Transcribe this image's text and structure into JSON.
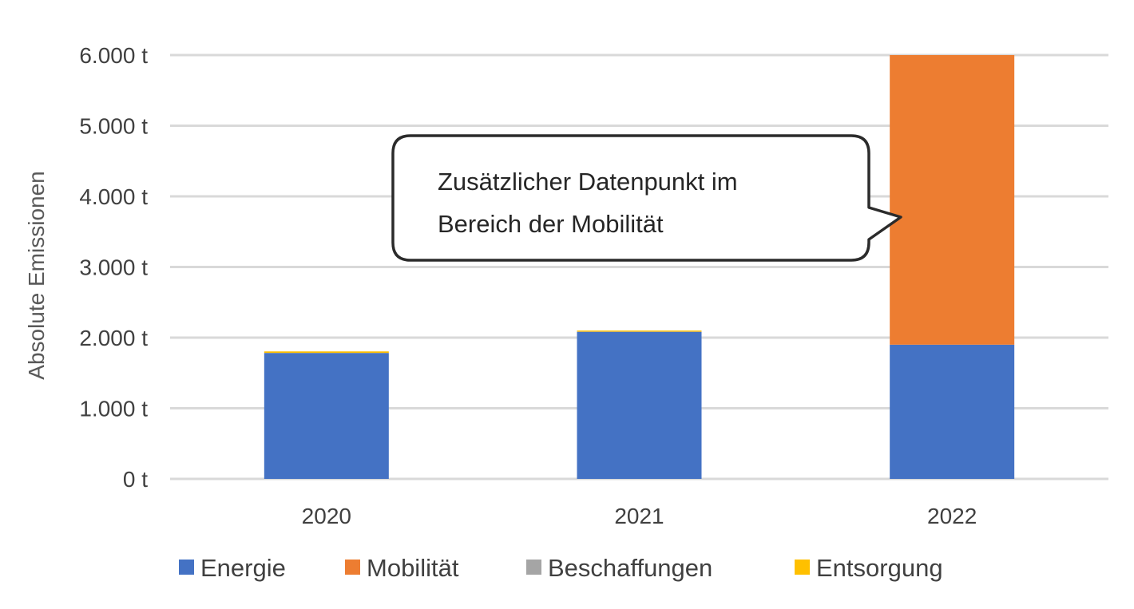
{
  "chart_data": {
    "type": "bar",
    "stacked": true,
    "categories": [
      "2020",
      "2021",
      "2022"
    ],
    "series": [
      {
        "name": "Energie",
        "color": "#4472C4",
        "values": [
          1780,
          2080,
          1900
        ]
      },
      {
        "name": "Mobilität",
        "color": "#ED7D31",
        "values": [
          0,
          0,
          4100
        ]
      },
      {
        "name": "Beschaffungen",
        "color": "#A5A5A5",
        "values": [
          5,
          5,
          0
        ]
      },
      {
        "name": "Entsorgung",
        "color": "#FFC000",
        "values": [
          20,
          15,
          0
        ]
      }
    ],
    "ylabel": "Absolute Emissionen",
    "ylim": [
      0,
      6000
    ],
    "yticks": [
      "0 t",
      "1.000 t",
      "2.000 t",
      "3.000 t",
      "4.000 t",
      "5.000 t",
      "6.000 t"
    ],
    "grid": true,
    "legend_position": "bottom",
    "annotation": {
      "lines": [
        "Zusätzlicher Datenpunkt im",
        "Bereich der Mobilität"
      ],
      "points_to_category": "2022"
    }
  }
}
